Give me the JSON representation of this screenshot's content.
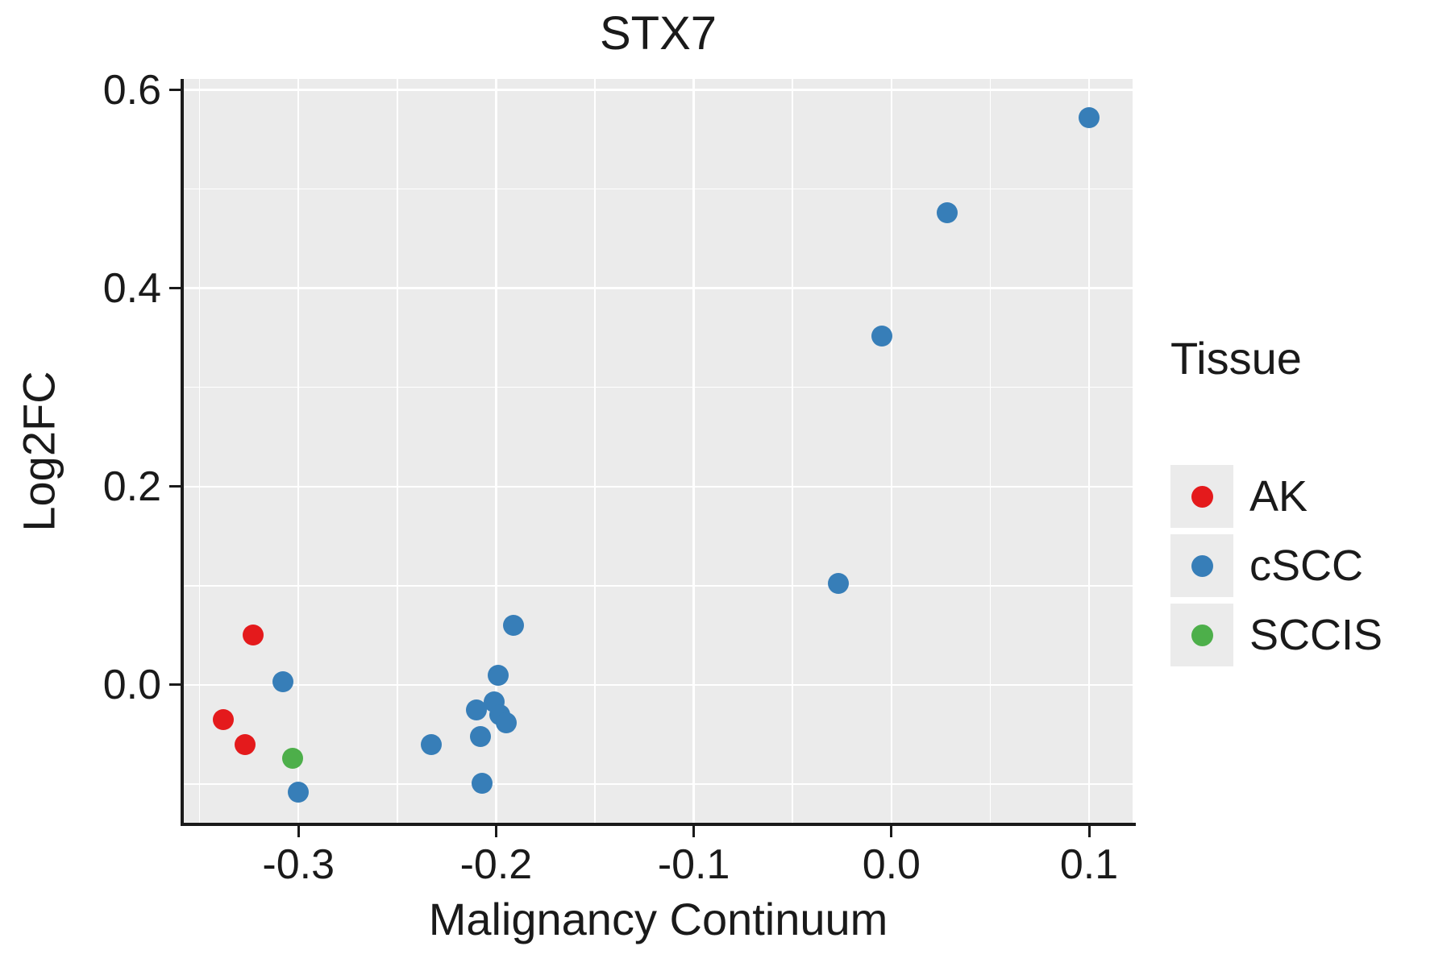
{
  "chart_data": {
    "type": "scatter",
    "title": "STX7",
    "xlabel": "Malignancy Continuum",
    "ylabel": "Log2FC",
    "xlim": [
      -0.358,
      0.122
    ],
    "ylim": [
      -0.139,
      0.611
    ],
    "x_ticks": [
      -0.3,
      -0.2,
      -0.1,
      0.0,
      0.1
    ],
    "x_tick_labels": [
      "-0.3",
      "-0.2",
      "-0.1",
      "0.0",
      "0.1"
    ],
    "y_ticks": [
      0.0,
      0.2,
      0.4,
      0.6
    ],
    "y_tick_labels": [
      "0.0",
      "0.2",
      "0.4",
      "0.6"
    ],
    "grid": true,
    "panel_background": "#EBEBEB",
    "gridline_color": "#FFFFFF",
    "legend": {
      "title": "Tissue",
      "position": "right",
      "entries": [
        {
          "label": "AK",
          "color": "#E41A1C"
        },
        {
          "label": "cSCC",
          "color": "#377EB8"
        },
        {
          "label": "SCCIS",
          "color": "#4DAF4A"
        }
      ]
    },
    "series": [
      {
        "name": "AK",
        "color": "#E41A1C",
        "points": [
          [
            -0.323,
            0.05
          ],
          [
            -0.338,
            -0.035
          ],
          [
            -0.327,
            -0.06
          ]
        ]
      },
      {
        "name": "cSCC",
        "color": "#377EB8",
        "points": [
          [
            -0.308,
            0.003
          ],
          [
            -0.3,
            -0.108
          ],
          [
            -0.233,
            -0.06
          ],
          [
            -0.21,
            -0.025
          ],
          [
            -0.208,
            -0.052
          ],
          [
            -0.207,
            -0.099
          ],
          [
            -0.201,
            -0.017
          ],
          [
            -0.199,
            0.01
          ],
          [
            -0.198,
            -0.03
          ],
          [
            -0.195,
            -0.038
          ],
          [
            -0.191,
            0.06
          ],
          [
            -0.027,
            0.102
          ],
          [
            -0.005,
            0.352
          ],
          [
            0.028,
            0.476
          ],
          [
            0.1,
            0.572
          ]
        ]
      },
      {
        "name": "SCCIS",
        "color": "#4DAF4A",
        "points": [
          [
            -0.303,
            -0.074
          ]
        ]
      }
    ]
  }
}
